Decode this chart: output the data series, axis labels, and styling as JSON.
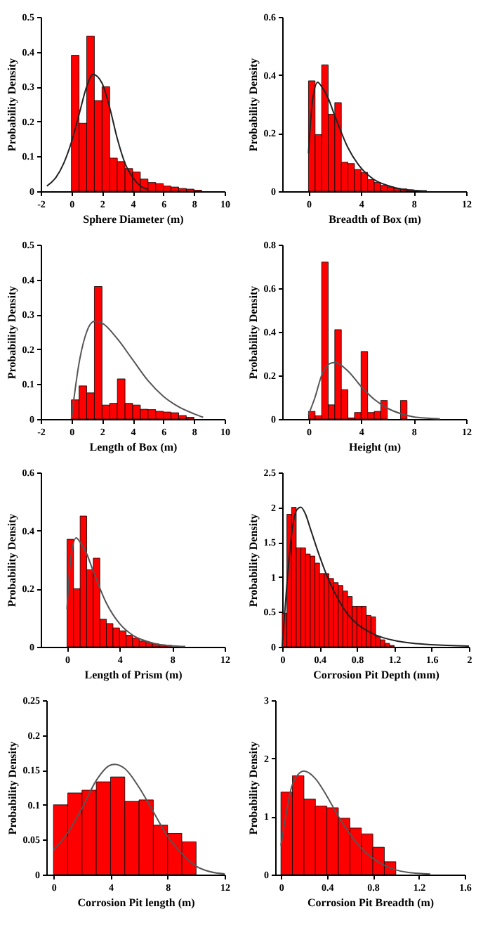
{
  "chart_data": [
    {
      "type": "histogram",
      "xlabel": "Sphere Diameter (m)",
      "ylabel": "Probability Density",
      "color": "#ff0000",
      "bins": [
        0,
        0.5,
        1,
        1.5,
        2,
        2.5,
        3,
        3.5,
        4,
        4.5,
        5,
        5.5,
        6,
        6.5,
        7,
        7.5,
        8,
        8.5
      ],
      "values": [
        0.39,
        0.195,
        0.445,
        0.26,
        0.3,
        0.095,
        0.085,
        0.065,
        0.055,
        0.035,
        0.025,
        0.022,
        0.015,
        0.012,
        0.008,
        0.006,
        0.003
      ],
      "xlim": [
        -2,
        10
      ],
      "xticks": [
        -2,
        0,
        2,
        4,
        6,
        8,
        10
      ],
      "ylim": [
        0,
        0.5
      ],
      "yticks": [
        0,
        0.1,
        0.2,
        0.3,
        0.4,
        0.5
      ],
      "series": [
        {
          "type": "line",
          "color": "#222222",
          "x": [
            -1.6,
            -1,
            -0.5,
            0,
            0.5,
            1,
            1.4,
            2,
            2.5,
            3,
            3.5,
            4,
            4.5,
            5
          ],
          "values": [
            0.015,
            0.04,
            0.08,
            0.14,
            0.22,
            0.3,
            0.335,
            0.31,
            0.24,
            0.15,
            0.08,
            0.04,
            0.015,
            0.005
          ]
        }
      ]
    },
    {
      "type": "histogram",
      "xlabel": "Breadth of Box (m)",
      "ylabel": "Probability Density",
      "color": "#ff0000",
      "bins": [
        0,
        0.5,
        1,
        1.5,
        2,
        2.5,
        3,
        3.5,
        4,
        4.5,
        5,
        5.5,
        6,
        6.5,
        7,
        7.5,
        8
      ],
      "values": [
        0.38,
        0.195,
        0.435,
        0.265,
        0.305,
        0.1,
        0.095,
        0.075,
        0.065,
        0.04,
        0.03,
        0.02,
        0.015,
        0.01,
        0.008,
        0.005
      ],
      "xlim": [
        -2,
        12
      ],
      "xticks": [
        0,
        4,
        8,
        12
      ],
      "ylim": [
        0,
        0.6
      ],
      "yticks": [
        0,
        0.2,
        0.4,
        0.6
      ],
      "series": [
        {
          "type": "line",
          "color": "#222222",
          "x": [
            0,
            0.3,
            0.7,
            1,
            1.5,
            2,
            3,
            4,
            5,
            6,
            7,
            8,
            9
          ],
          "values": [
            0.13,
            0.31,
            0.375,
            0.36,
            0.32,
            0.26,
            0.15,
            0.08,
            0.04,
            0.02,
            0.008,
            0.003,
            0.001
          ]
        }
      ]
    },
    {
      "type": "histogram",
      "xlabel": "Length of Box (m)",
      "ylabel": "Probability Density",
      "color": "#ff0000",
      "bins": [
        0,
        0.5,
        1,
        1.5,
        2,
        2.5,
        3,
        3.5,
        4,
        4.5,
        5,
        5.5,
        6,
        6.5,
        7,
        7.5,
        8
      ],
      "values": [
        0.055,
        0.095,
        0.075,
        0.38,
        0.04,
        0.045,
        0.115,
        0.045,
        0.04,
        0.028,
        0.027,
        0.022,
        0.02,
        0.018,
        0.01,
        0.005
      ],
      "xlim": [
        -2,
        10
      ],
      "xticks": [
        -2,
        0,
        2,
        4,
        6,
        8,
        10
      ],
      "ylim": [
        0,
        0.5
      ],
      "yticks": [
        0,
        0.1,
        0.2,
        0.3,
        0.4,
        0.5
      ],
      "series": [
        {
          "type": "line",
          "color": "#555555",
          "x": [
            0,
            0.5,
            1,
            1.5,
            2,
            3,
            4,
            5,
            6,
            7,
            8,
            8.6
          ],
          "values": [
            0,
            0.16,
            0.25,
            0.28,
            0.275,
            0.23,
            0.17,
            0.11,
            0.065,
            0.035,
            0.015,
            0.005
          ]
        }
      ]
    },
    {
      "type": "histogram",
      "xlabel": "Height (m)",
      "ylabel": "Probability Density",
      "color": "#ff0000",
      "bins": [
        0,
        0.5,
        1,
        1.5,
        2,
        2.5,
        3,
        3.5,
        4,
        4.5,
        5,
        5.5,
        6,
        6.5,
        7,
        7.5
      ],
      "values": [
        0.035,
        0.015,
        0.72,
        0.065,
        0.41,
        0.135,
        0.005,
        0.03,
        0.31,
        0.03,
        0.035,
        0.085,
        0,
        0,
        0.085
      ],
      "xlim": [
        -2,
        12
      ],
      "xticks": [
        0,
        4,
        8,
        12
      ],
      "ylim": [
        0,
        0.8
      ],
      "yticks": [
        0,
        0.2,
        0.4,
        0.6,
        0.8
      ],
      "series": [
        {
          "type": "line",
          "color": "#555555",
          "x": [
            0,
            0.5,
            1,
            1.5,
            2,
            3,
            4,
            5,
            6,
            7,
            8,
            9,
            10
          ],
          "values": [
            0.02,
            0.1,
            0.2,
            0.25,
            0.26,
            0.22,
            0.15,
            0.09,
            0.05,
            0.025,
            0.01,
            0.004,
            0.001
          ]
        }
      ]
    },
    {
      "type": "histogram",
      "xlabel": "Length of Prism (m)",
      "ylabel": "Probability Density",
      "color": "#ff0000",
      "bins": [
        0,
        0.5,
        1,
        1.5,
        2,
        2.5,
        3,
        3.5,
        4,
        4.5,
        5,
        5.5,
        6,
        6.5,
        7,
        7.5,
        8
      ],
      "values": [
        0.37,
        0.2,
        0.45,
        0.265,
        0.305,
        0.095,
        0.08,
        0.065,
        0.055,
        0.04,
        0.03,
        0.02,
        0.015,
        0.01,
        0.007,
        0.005
      ],
      "xlim": [
        -2,
        12
      ],
      "xticks": [
        0,
        4,
        8,
        12
      ],
      "ylim": [
        0,
        0.6
      ],
      "yticks": [
        0,
        0.2,
        0.4,
        0.6
      ],
      "series": [
        {
          "type": "line",
          "color": "#555555",
          "x": [
            0,
            0.3,
            0.7,
            1,
            1.5,
            2,
            3,
            4,
            5,
            6,
            7,
            8,
            9
          ],
          "values": [
            0.13,
            0.31,
            0.375,
            0.36,
            0.32,
            0.26,
            0.15,
            0.08,
            0.04,
            0.02,
            0.008,
            0.003,
            0.001
          ]
        }
      ]
    },
    {
      "type": "histogram",
      "xlabel": "Corrosion Pit Depth (mm)",
      "ylabel": "Probability Density",
      "color": "#ff0000",
      "bins": [
        0,
        0.05,
        0.1,
        0.15,
        0.2,
        0.25,
        0.3,
        0.35,
        0.4,
        0.45,
        0.5,
        0.55,
        0.6,
        0.65,
        0.7,
        0.75,
        0.8,
        0.85,
        0.9,
        0.95,
        1,
        1.05,
        1.1,
        1.15,
        1.2
      ],
      "values": [
        0.48,
        1.9,
        2,
        1.42,
        1.42,
        1.33,
        1.3,
        1.2,
        1.05,
        1.05,
        0.98,
        0.92,
        0.88,
        0.8,
        0.72,
        0.58,
        0.58,
        0.58,
        0.45,
        0.43,
        0.15,
        0.1,
        0.05,
        0.02
      ],
      "xlim": [
        0,
        2
      ],
      "xticks": [
        0,
        0.4,
        0.8,
        1.2,
        1.6,
        2
      ],
      "ylim": [
        0,
        2.5
      ],
      "yticks": [
        0,
        0.5,
        1,
        1.5,
        2,
        2.5
      ],
      "series": [
        {
          "type": "line",
          "color": "#222222",
          "x": [
            0,
            0.05,
            0.1,
            0.15,
            0.2,
            0.25,
            0.3,
            0.4,
            0.5,
            0.6,
            0.7,
            0.8,
            1,
            1.2,
            1.4,
            1.6,
            2
          ],
          "values": [
            0,
            0.9,
            1.6,
            1.95,
            2,
            1.9,
            1.7,
            1.3,
            0.95,
            0.68,
            0.47,
            0.33,
            0.17,
            0.09,
            0.05,
            0.03,
            0.01
          ]
        }
      ]
    },
    {
      "type": "histogram",
      "xlabel": "Corrosion Pit length (m)",
      "ylabel": "Probability Density",
      "color": "#ff0000",
      "bins": [
        0,
        1,
        2,
        3,
        4,
        5,
        6,
        7,
        8,
        9,
        10
      ],
      "values": [
        0.1,
        0.117,
        0.121,
        0.133,
        0.14,
        0.105,
        0.107,
        0.071,
        0.059,
        0.047
      ],
      "xlim": [
        -0.5,
        12
      ],
      "xticks": [
        0,
        4,
        8,
        12
      ],
      "ylim": [
        0,
        0.25
      ],
      "yticks": [
        0,
        0.05,
        0.1,
        0.15,
        0.2,
        0.25
      ],
      "series": [
        {
          "type": "line",
          "color": "#555555",
          "x": [
            0,
            1,
            2,
            3,
            4,
            4.3,
            5,
            6,
            7,
            8,
            9,
            10,
            11,
            12
          ],
          "values": [
            0.035,
            0.06,
            0.095,
            0.135,
            0.157,
            0.158,
            0.152,
            0.125,
            0.09,
            0.055,
            0.03,
            0.012,
            0.004,
            0.001
          ]
        }
      ]
    },
    {
      "type": "histogram",
      "xlabel": "Corrosion Pit Breadth (m)",
      "ylabel": "Probability Density",
      "color": "#ff0000",
      "bins": [
        0,
        0.1,
        0.2,
        0.3,
        0.4,
        0.5,
        0.6,
        0.7,
        0.8,
        0.9,
        1
      ],
      "values": [
        1.42,
        1.7,
        1.3,
        1.18,
        1.15,
        0.97,
        0.8,
        0.7,
        0.47,
        0.22
      ],
      "xlim": [
        -0.05,
        1.6
      ],
      "xticks": [
        0,
        0.4,
        0.8,
        1.2,
        1.6
      ],
      "ylim": [
        0,
        3
      ],
      "yticks": [
        0,
        1,
        2,
        3
      ],
      "series": [
        {
          "type": "line",
          "color": "#555555",
          "x": [
            0,
            0.05,
            0.1,
            0.2,
            0.3,
            0.4,
            0.5,
            0.6,
            0.7,
            0.8,
            0.9,
            1,
            1.1,
            1.2,
            1.3
          ],
          "values": [
            0.5,
            1.1,
            1.55,
            1.78,
            1.65,
            1.35,
            1,
            0.7,
            0.45,
            0.28,
            0.16,
            0.08,
            0.04,
            0.02,
            0.01
          ]
        }
      ]
    }
  ]
}
